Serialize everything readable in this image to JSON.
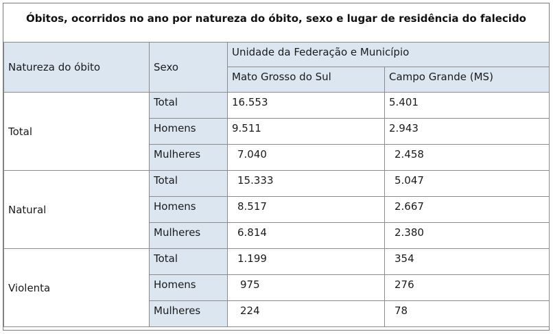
{
  "title": "Óbitos, ocorridos no ano por natureza do óbito, sexo e lugar de residência do falecido",
  "headers": {
    "natureza": "Natureza do óbito",
    "sexo": "Sexo",
    "unidade": "Unidade da Federação e Município",
    "col_ms": "Mato Grosso do Sul",
    "col_cg": "Campo Grande (MS)"
  },
  "groups": [
    {
      "label": "Total",
      "rows": [
        {
          "sexo": "Total",
          "ms": "16.553",
          "cg": "5.401"
        },
        {
          "sexo": "Homens",
          "ms": "9.511",
          "cg": "2.943"
        },
        {
          "sexo": "Mulheres",
          "ms": "7.040",
          "cg": "2.458"
        }
      ]
    },
    {
      "label": "Natural",
      "rows": [
        {
          "sexo": "Total",
          "ms": "15.333",
          "cg": "5.047"
        },
        {
          "sexo": "Homens",
          "ms": "8.517",
          "cg": "2.667"
        },
        {
          "sexo": "Mulheres",
          "ms": "6.814",
          "cg": "2.380"
        }
      ]
    },
    {
      "label": "Violenta",
      "rows": [
        {
          "sexo": "Total",
          "ms": "1.199",
          "cg": "354"
        },
        {
          "sexo": "Homens",
          "ms": "975",
          "cg": "276"
        },
        {
          "sexo": "Mulheres",
          "ms": "224",
          "cg": "78"
        }
      ]
    }
  ],
  "colors": {
    "header_fill": "#dce6f1",
    "border": "#8a8a8a"
  }
}
